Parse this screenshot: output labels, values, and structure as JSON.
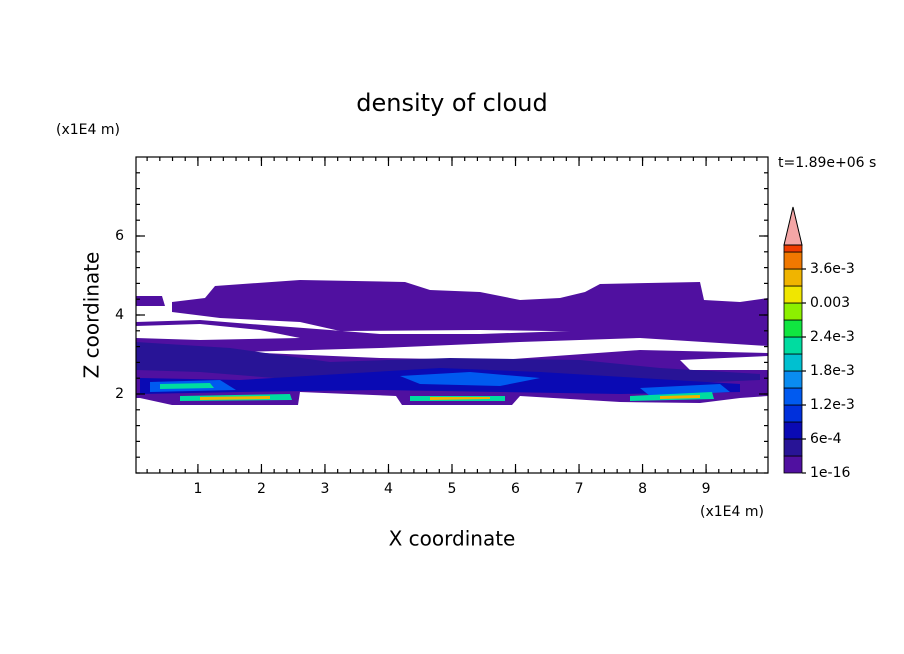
{
  "chart_data": {
    "type": "contour",
    "title": "density of cloud",
    "x_label": "X coordinate",
    "y_label": "Z coordinate",
    "x_unit": "(x1E4 m)",
    "y_unit": "(x1E4 m)",
    "annotation": "t=1.89e+06 s",
    "xlim": [
      0.025,
      9.975
    ],
    "ylim": [
      0,
      8
    ],
    "xticks": [
      1,
      2,
      3,
      4,
      5,
      6,
      7,
      8,
      9
    ],
    "yticks": [
      2,
      4,
      6
    ],
    "colorbar": {
      "levels": [
        1e-16,
        0.0003,
        0.0006,
        0.0009,
        0.0012,
        0.0015,
        0.0018,
        0.0021,
        0.0024,
        0.0027,
        0.003,
        0.0033,
        0.0036,
        0.0039
      ],
      "colors": [
        "#5010a0",
        "#281496",
        "#0a0ab4",
        "#0030dc",
        "#005af0",
        "#0a8cf0",
        "#00c0d0",
        "#00dca0",
        "#10e640",
        "#8cf000",
        "#f0e600",
        "#f0b400",
        "#f07800",
        "#f03c00",
        "#e60a0a"
      ],
      "extend_color": "#f4a6a6",
      "ticks": [
        {
          "value": 1e-16,
          "label": "1e-16"
        },
        {
          "value": 0.0006,
          "label": "6e-4"
        },
        {
          "value": 0.0012,
          "label": "1.2e-3"
        },
        {
          "value": 0.0018,
          "label": "1.8e-3"
        },
        {
          "value": 0.0024,
          "label": "2.4e-3"
        },
        0.003,
        {
          "value": 0.0036,
          "label": "3.6e-3"
        }
      ]
    }
  }
}
